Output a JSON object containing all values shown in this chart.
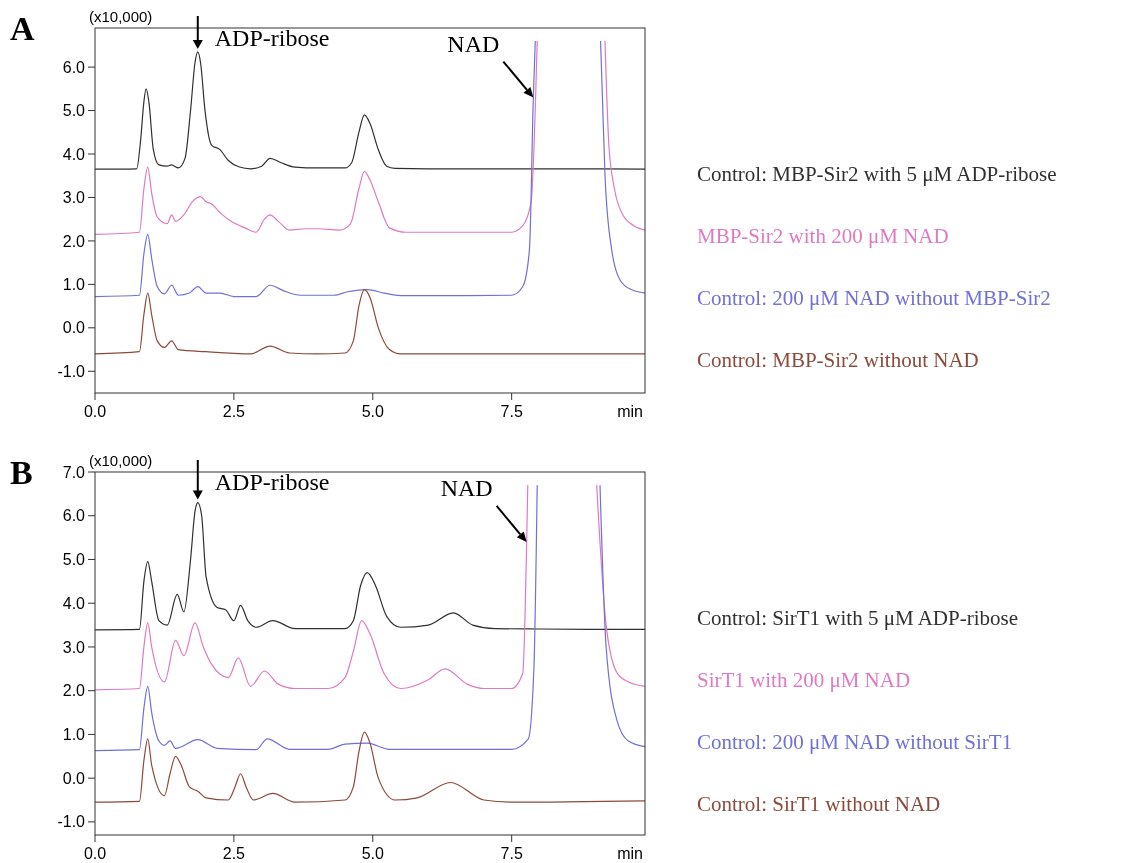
{
  "chart_data": [
    {
      "type": "line",
      "title": "A",
      "xlabel": "min",
      "ylabel": "(x10,000)",
      "xlim": [
        0,
        9.9
      ],
      "ylim": [
        -1.5,
        6.9
      ],
      "xticks": [
        {
          "value": 0,
          "label": "0.0"
        },
        {
          "value": 2.5,
          "label": "2.5"
        },
        {
          "value": 5,
          "label": "5.0"
        },
        {
          "value": 7.5,
          "label": "7.5"
        }
      ],
      "yticks": [
        {
          "value": -1,
          "label": "-1.0"
        },
        {
          "value": 0,
          "label": "0.0"
        },
        {
          "value": 1,
          "label": "1.0"
        },
        {
          "value": 2,
          "label": "2.0"
        },
        {
          "value": 3,
          "label": "3.0"
        },
        {
          "value": 4,
          "label": "4.0"
        },
        {
          "value": 5,
          "label": "5.0"
        },
        {
          "value": 6,
          "label": "6.0"
        }
      ],
      "legend": "right",
      "grid": false,
      "annotations": [
        {
          "text": "ADP-ribose",
          "x": 1.85,
          "y": 6.35
        },
        {
          "text": "NAD",
          "x": 7.89,
          "y": 5.3
        }
      ],
      "series": [
        {
          "name": "Control: MBP-Sir2 with 5 μM ADP-ribose",
          "color": "#303030",
          "x": [
            0,
            0.75,
            0.82,
            0.88,
            0.92,
            0.97,
            1.05,
            1.15,
            1.3,
            1.38,
            1.5,
            1.62,
            1.72,
            1.8,
            1.85,
            1.9,
            1.98,
            2.1,
            2.25,
            2.4,
            2.6,
            2.8,
            3.0,
            3.15,
            3.35,
            3.6,
            4.0,
            4.5,
            4.62,
            4.75,
            4.85,
            4.95,
            5.1,
            5.25,
            5.4,
            6.0,
            7.0,
            8.0,
            9.0,
            9.9
          ],
          "values": [
            3.65,
            3.66,
            4.3,
            5.2,
            5.5,
            5.2,
            4.1,
            3.75,
            3.72,
            3.75,
            3.68,
            3.9,
            5.0,
            6.1,
            6.35,
            6.1,
            5.0,
            4.2,
            4.1,
            3.85,
            3.7,
            3.66,
            3.72,
            3.9,
            3.8,
            3.7,
            3.68,
            3.68,
            3.8,
            4.5,
            4.9,
            4.7,
            4.1,
            3.72,
            3.67,
            3.66,
            3.66,
            3.66,
            3.66,
            3.65
          ]
        },
        {
          "name": "MBP-Sir2 with 200 μM NAD",
          "color": "#e07ac0",
          "x": [
            0,
            0.8,
            0.88,
            0.95,
            1.02,
            1.12,
            1.3,
            1.38,
            1.45,
            1.6,
            1.75,
            1.9,
            2.0,
            2.1,
            2.25,
            2.45,
            2.7,
            2.9,
            3.05,
            3.15,
            3.3,
            3.5,
            3.8,
            4.0,
            4.4,
            4.6,
            4.75,
            4.85,
            4.95,
            5.1,
            5.3,
            5.6,
            6.5,
            7.5,
            7.7,
            7.85,
            7.96,
            8.5,
            9.18,
            9.25,
            9.35,
            9.5,
            9.7,
            9.9
          ],
          "values": [
            2.15,
            2.2,
            3.2,
            3.7,
            3.1,
            2.55,
            2.4,
            2.6,
            2.45,
            2.6,
            2.9,
            3.02,
            2.9,
            2.85,
            2.65,
            2.45,
            2.3,
            2.2,
            2.5,
            2.6,
            2.45,
            2.25,
            2.28,
            2.28,
            2.25,
            2.4,
            3.2,
            3.6,
            3.4,
            2.9,
            2.3,
            2.2,
            2.2,
            2.2,
            2.35,
            2.9,
            6.6,
            null,
            6.6,
            4.2,
            3.2,
            2.6,
            2.35,
            2.25
          ]
        },
        {
          "name": "Control: 200 μM NAD without MBP-Sir2",
          "color": "#7070d8",
          "x": [
            0,
            0.8,
            0.88,
            0.95,
            1.02,
            1.12,
            1.25,
            1.38,
            1.5,
            1.7,
            1.85,
            2.0,
            2.25,
            2.5,
            2.9,
            3.15,
            3.4,
            3.7,
            4.3,
            4.55,
            4.9,
            5.2,
            5.5,
            6.5,
            7.5,
            7.7,
            7.82,
            7.89,
            7.925,
            8.5,
            9.1,
            9.18,
            9.3,
            9.45,
            9.65,
            9.9
          ],
          "values": [
            0.72,
            0.75,
            1.7,
            2.15,
            1.6,
            0.95,
            0.78,
            0.98,
            0.75,
            0.8,
            0.95,
            0.8,
            0.8,
            0.72,
            0.72,
            0.98,
            0.85,
            0.75,
            0.75,
            0.83,
            0.88,
            0.8,
            0.74,
            0.74,
            0.75,
            0.95,
            1.8,
            5.3,
            6.6,
            null,
            6.6,
            3.5,
            1.8,
            1.1,
            0.88,
            0.8
          ]
        },
        {
          "name": "Control: MBP-Sir2 without NAD",
          "color": "#8c4a3c",
          "x": [
            0,
            0.8,
            0.88,
            0.95,
            1.02,
            1.12,
            1.25,
            1.38,
            1.5,
            2.0,
            2.8,
            3.15,
            3.5,
            4.0,
            4.5,
            4.65,
            4.75,
            4.85,
            4.95,
            5.1,
            5.3,
            5.5,
            7.0,
            9.9
          ],
          "values": [
            -0.6,
            -0.55,
            0.3,
            0.8,
            0.3,
            -0.3,
            -0.45,
            -0.3,
            -0.5,
            -0.55,
            -0.6,
            -0.42,
            -0.58,
            -0.6,
            -0.58,
            -0.3,
            0.5,
            0.88,
            0.7,
            0.0,
            -0.5,
            -0.6,
            -0.6,
            -0.6
          ]
        }
      ]
    },
    {
      "type": "line",
      "title": "B",
      "xlabel": "min",
      "ylabel": "(x10,000)",
      "xlim": [
        0,
        9.9
      ],
      "ylim": [
        -1.3,
        7.0
      ],
      "xticks": [
        {
          "value": 0,
          "label": "0.0"
        },
        {
          "value": 2.5,
          "label": "2.5"
        },
        {
          "value": 5,
          "label": "5.0"
        },
        {
          "value": 7.5,
          "label": "7.5"
        }
      ],
      "yticks": [
        {
          "value": -1,
          "label": "-1.0"
        },
        {
          "value": 0,
          "label": "0.0"
        },
        {
          "value": 1,
          "label": "1.0"
        },
        {
          "value": 2,
          "label": "2.0"
        },
        {
          "value": 3,
          "label": "3.0"
        },
        {
          "value": 4,
          "label": "4.0"
        },
        {
          "value": 5,
          "label": "5.0"
        },
        {
          "value": 6,
          "label": "6.0"
        },
        {
          "value": 7,
          "label": "7.0"
        }
      ],
      "legend": "right",
      "grid": false,
      "annotations": [
        {
          "text": "ADP-ribose",
          "x": 1.85,
          "y": 6.3
        },
        {
          "text": "NAD",
          "x": 7.77,
          "y": 5.4
        }
      ],
      "series": [
        {
          "name": "Control: SirT1 with 5 μM ADP-ribose",
          "color": "#303030",
          "x": [
            0,
            0.8,
            0.88,
            0.95,
            1.02,
            1.15,
            1.3,
            1.48,
            1.6,
            1.72,
            1.8,
            1.85,
            1.92,
            2.0,
            2.2,
            2.35,
            2.5,
            2.62,
            2.75,
            2.9,
            3.2,
            3.6,
            4.5,
            4.65,
            4.78,
            4.9,
            5.05,
            5.25,
            5.5,
            6.0,
            6.45,
            6.8,
            7.2,
            8.0,
            9.0,
            9.9
          ],
          "values": [
            3.39,
            3.4,
            4.5,
            4.95,
            4.5,
            3.6,
            3.5,
            4.2,
            3.8,
            5.0,
            6.1,
            6.3,
            6.0,
            4.6,
            3.9,
            3.85,
            3.6,
            3.95,
            3.6,
            3.45,
            3.6,
            3.42,
            3.42,
            3.6,
            4.4,
            4.7,
            4.4,
            3.7,
            3.45,
            3.5,
            3.78,
            3.5,
            3.42,
            3.41,
            3.4,
            3.4
          ]
        },
        {
          "name": "SirT1 with 200 μM NAD",
          "color": "#e07ac0",
          "x": [
            0,
            0.8,
            0.88,
            0.95,
            1.02,
            1.25,
            1.45,
            1.6,
            1.8,
            1.95,
            2.1,
            2.4,
            2.58,
            2.8,
            3.05,
            3.3,
            3.6,
            4.2,
            4.5,
            4.65,
            4.8,
            4.95,
            5.2,
            5.5,
            6.0,
            6.3,
            6.7,
            7.0,
            7.5,
            7.7,
            7.77,
            7.79,
            8.4,
            9.03,
            9.2,
            9.4,
            9.6,
            9.9
          ],
          "values": [
            2.02,
            2.05,
            3.0,
            3.55,
            3.0,
            2.2,
            3.15,
            2.8,
            3.55,
            3.0,
            2.6,
            2.3,
            2.75,
            2.1,
            2.45,
            2.15,
            2.05,
            2.05,
            2.3,
            2.9,
            3.6,
            3.3,
            2.4,
            2.05,
            2.25,
            2.5,
            2.15,
            2.05,
            2.05,
            2.4,
            5.4,
            6.7,
            null,
            6.7,
            3.5,
            2.4,
            2.2,
            2.1
          ]
        },
        {
          "name": "Control: 200 μM NAD without SirT1",
          "color": "#7070d8",
          "x": [
            0,
            0.8,
            0.88,
            0.95,
            1.02,
            1.15,
            1.25,
            1.35,
            1.45,
            1.85,
            2.2,
            2.9,
            3.1,
            3.5,
            4.2,
            4.5,
            4.9,
            5.3,
            7.5,
            7.8,
            7.9,
            7.96,
            8.5,
            9.09,
            9.2,
            9.4,
            9.6,
            9.9
          ],
          "values": [
            0.63,
            0.65,
            1.6,
            2.1,
            1.5,
            0.85,
            0.75,
            0.85,
            0.68,
            0.88,
            0.68,
            0.65,
            0.9,
            0.66,
            0.66,
            0.78,
            0.8,
            0.66,
            0.66,
            0.9,
            2.5,
            6.7,
            null,
            6.7,
            3.0,
            1.3,
            0.85,
            0.72
          ]
        },
        {
          "name": "Control: SirT1 without NAD",
          "color": "#8c4a3c",
          "x": [
            0,
            0.8,
            0.88,
            0.95,
            1.02,
            1.25,
            1.35,
            1.45,
            1.55,
            1.7,
            1.85,
            2.0,
            2.4,
            2.52,
            2.62,
            2.72,
            2.85,
            3.2,
            3.6,
            4.5,
            4.65,
            4.75,
            4.85,
            4.95,
            5.1,
            5.4,
            5.8,
            6.4,
            7.0,
            7.5,
            9.9
          ],
          "values": [
            -0.55,
            -0.53,
            0.4,
            0.9,
            0.3,
            -0.4,
            0.1,
            0.5,
            0.3,
            -0.2,
            -0.3,
            -0.45,
            -0.5,
            -0.2,
            0.1,
            -0.2,
            -0.5,
            -0.35,
            -0.55,
            -0.5,
            -0.2,
            0.6,
            1.05,
            0.8,
            0.0,
            -0.5,
            -0.45,
            -0.1,
            -0.5,
            -0.55,
            -0.52
          ]
        }
      ]
    }
  ]
}
